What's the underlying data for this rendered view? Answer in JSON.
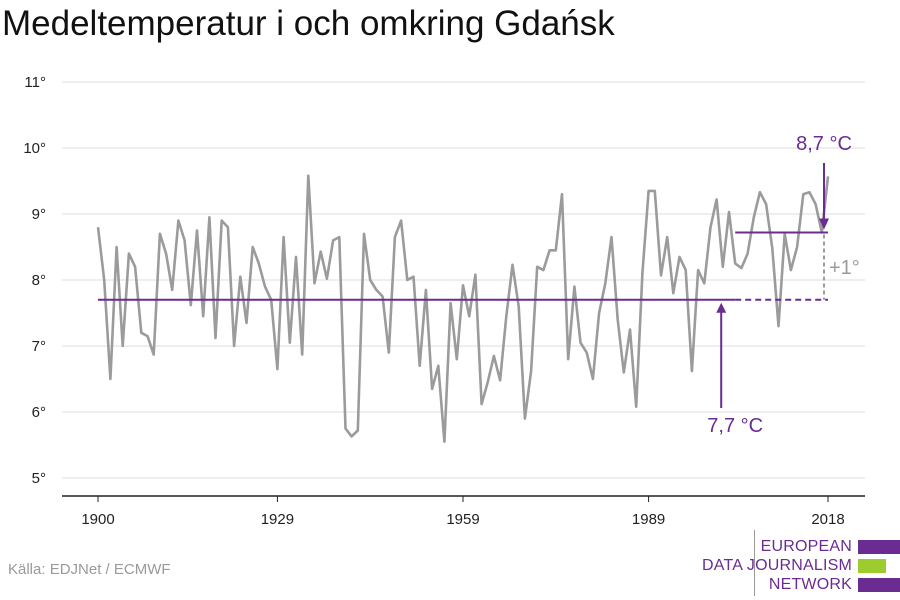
{
  "title": "Medeltemperatur i och omkring Gdańsk",
  "source": "Källa: EDJNet / ECMWF",
  "logo": {
    "lines": [
      "EUROPEAN",
      "DATA JOURNALISM",
      "NETWORK"
    ],
    "colors": [
      "#6a2c91",
      "#9ccc2e",
      "#6a2c91"
    ]
  },
  "colors": {
    "series": "#9b9b9b",
    "accent": "#6a2c91",
    "diff": "#9b9b9b",
    "grid": "#dddddd",
    "axis": "#222222"
  },
  "chart_data": {
    "type": "line",
    "title": "Medeltemperatur i och omkring Gdańsk",
    "xlabel": "",
    "ylabel": "",
    "ylim": [
      5,
      11
    ],
    "xlim": [
      1900,
      2018
    ],
    "y_ticks": [
      5,
      6,
      7,
      8,
      9,
      10,
      11
    ],
    "y_tick_labels": [
      "5°",
      "6°",
      "7°",
      "8°",
      "9°",
      "10°",
      "11°"
    ],
    "x_ticks": [
      1900,
      1929,
      1959,
      1989,
      2018
    ],
    "x_tick_labels": [
      "1900",
      "1929",
      "1959",
      "1989",
      "2018"
    ],
    "grid": true,
    "series": [
      {
        "x": [
          1900,
          1901,
          1902,
          1903,
          1904,
          1905,
          1906,
          1907,
          1908,
          1909,
          1910,
          1911,
          1912,
          1913,
          1914,
          1915,
          1916,
          1917,
          1918,
          1919,
          1920,
          1921,
          1922,
          1923,
          1924,
          1925,
          1926,
          1927,
          1928,
          1929,
          1930,
          1931,
          1932,
          1933,
          1934,
          1935,
          1936,
          1937,
          1938,
          1939,
          1940,
          1941,
          1942,
          1943,
          1944,
          1945,
          1946,
          1947,
          1948,
          1949,
          1950,
          1951,
          1952,
          1953,
          1954,
          1955,
          1956,
          1957,
          1958,
          1959,
          1960,
          1961,
          1962,
          1963,
          1964,
          1965,
          1966,
          1967,
          1968,
          1969,
          1970,
          1971,
          1972,
          1973,
          1974,
          1975,
          1976,
          1977,
          1978,
          1979,
          1980,
          1981,
          1982,
          1983,
          1984,
          1985,
          1986,
          1987,
          1988,
          1989,
          1990,
          1991,
          1992,
          1993,
          1994,
          1995,
          1996,
          1997,
          1998,
          1999,
          2000,
          2001,
          2002,
          2003,
          2004,
          2005,
          2006,
          2007,
          2008,
          2009,
          2010,
          2011,
          2012,
          2013,
          2014,
          2015,
          2016,
          2017,
          2018
        ],
        "values": [
          8.8,
          8.0,
          6.5,
          8.5,
          7.0,
          8.4,
          8.2,
          7.2,
          7.15,
          6.87,
          8.7,
          8.4,
          7.85,
          8.9,
          8.6,
          7.62,
          8.75,
          7.45,
          8.95,
          7.12,
          8.9,
          8.8,
          7.0,
          8.05,
          7.35,
          8.5,
          8.25,
          7.9,
          7.7,
          6.65,
          8.65,
          7.05,
          8.35,
          6.87,
          9.58,
          7.95,
          8.43,
          8.02,
          8.6,
          8.65,
          5.75,
          5.63,
          5.72,
          8.7,
          8.0,
          7.85,
          7.75,
          6.9,
          8.65,
          8.9,
          8.0,
          8.05,
          6.7,
          7.85,
          6.35,
          6.7,
          5.55,
          7.65,
          6.8,
          7.92,
          7.45,
          8.08,
          6.12,
          6.45,
          6.85,
          6.48,
          7.45,
          8.23,
          7.6,
          5.9,
          6.62,
          8.2,
          8.15,
          8.45,
          8.45,
          9.3,
          6.8,
          7.9,
          7.05,
          6.9,
          6.5,
          7.5,
          7.95,
          8.65,
          7.4,
          6.6,
          7.25,
          6.08,
          8.1,
          9.35,
          9.35,
          8.07,
          8.65,
          7.8,
          8.35,
          8.15,
          6.62,
          8.15,
          7.95,
          8.8,
          9.22,
          8.2,
          9.03,
          8.25,
          8.18,
          8.4,
          8.95,
          9.33,
          9.15,
          8.48,
          7.3,
          8.7,
          8.15,
          8.5,
          9.3,
          9.33,
          9.15,
          8.72,
          9.57
        ]
      }
    ],
    "reference_lines": [
      {
        "label": "7,7 °C",
        "value": 7.7,
        "from": 1900,
        "to": 2018,
        "solid_to": 2003
      },
      {
        "label": "8,7 °C",
        "value": 8.72,
        "from": 2003,
        "to": 2018
      }
    ],
    "difference_label": "+1°"
  }
}
